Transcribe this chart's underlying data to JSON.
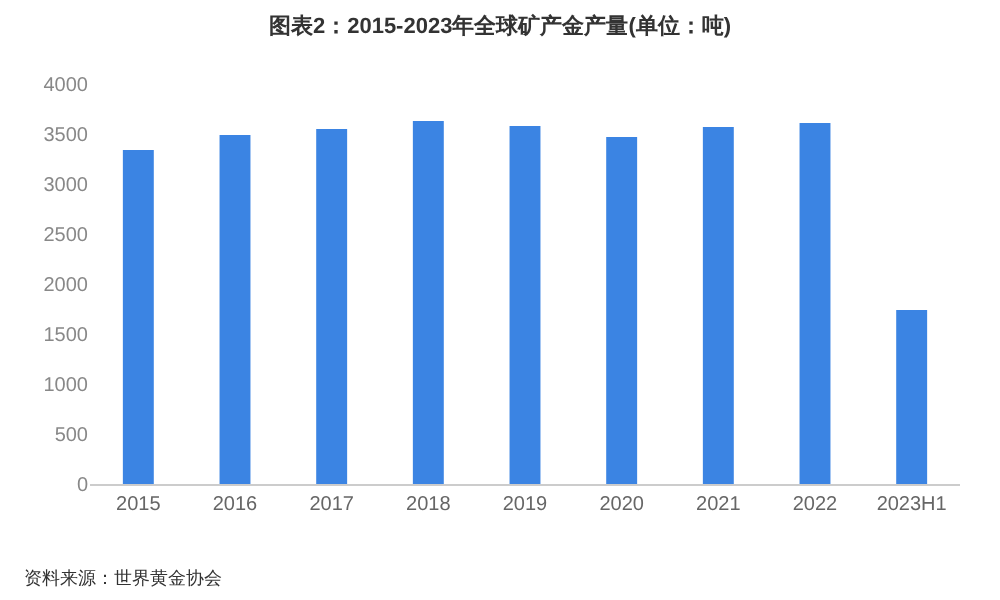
{
  "chart_data": {
    "type": "bar",
    "title": "图表2：2015-2023年全球矿产金产量(单位：吨)",
    "categories": [
      "2015",
      "2016",
      "2017",
      "2018",
      "2019",
      "2020",
      "2021",
      "2022",
      "2023H1"
    ],
    "values": [
      3340,
      3490,
      3550,
      3630,
      3580,
      3470,
      3570,
      3610,
      1740
    ],
    "color": "#3b84e3",
    "ylim": [
      0,
      4000
    ],
    "yticks": [
      0,
      500,
      1000,
      1500,
      2000,
      2500,
      3000,
      3500,
      4000
    ],
    "grid": false,
    "annotations": [
      "资料来源：世界黄金协会"
    ]
  }
}
